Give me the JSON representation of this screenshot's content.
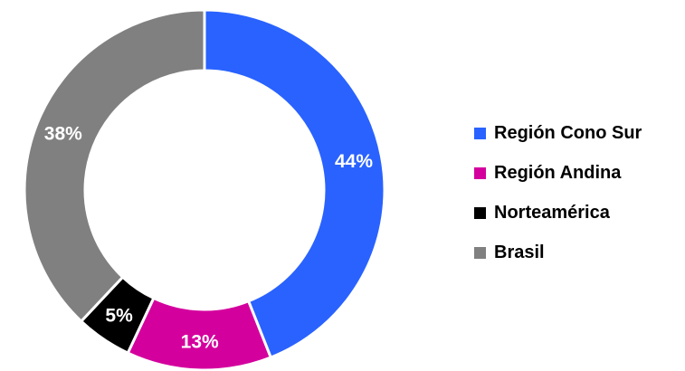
{
  "chart_data": {
    "type": "pie",
    "variant": "donut",
    "title": "",
    "categories": [
      "Región Cono Sur",
      "Región Andina",
      "Norteamérica",
      "Brasil"
    ],
    "values": [
      44,
      13,
      5,
      38
    ],
    "data_labels": [
      "44%",
      "13%",
      "5%",
      "38%"
    ],
    "colors": [
      "#2962ff",
      "#d4009e",
      "#000000",
      "#808080"
    ],
    "start_angle_deg": 0,
    "direction": "clockwise",
    "legend": {
      "placement": "right",
      "entries": [
        "Región Cono Sur",
        "Región Andina",
        "Norteamérica",
        "Brasil"
      ]
    }
  }
}
